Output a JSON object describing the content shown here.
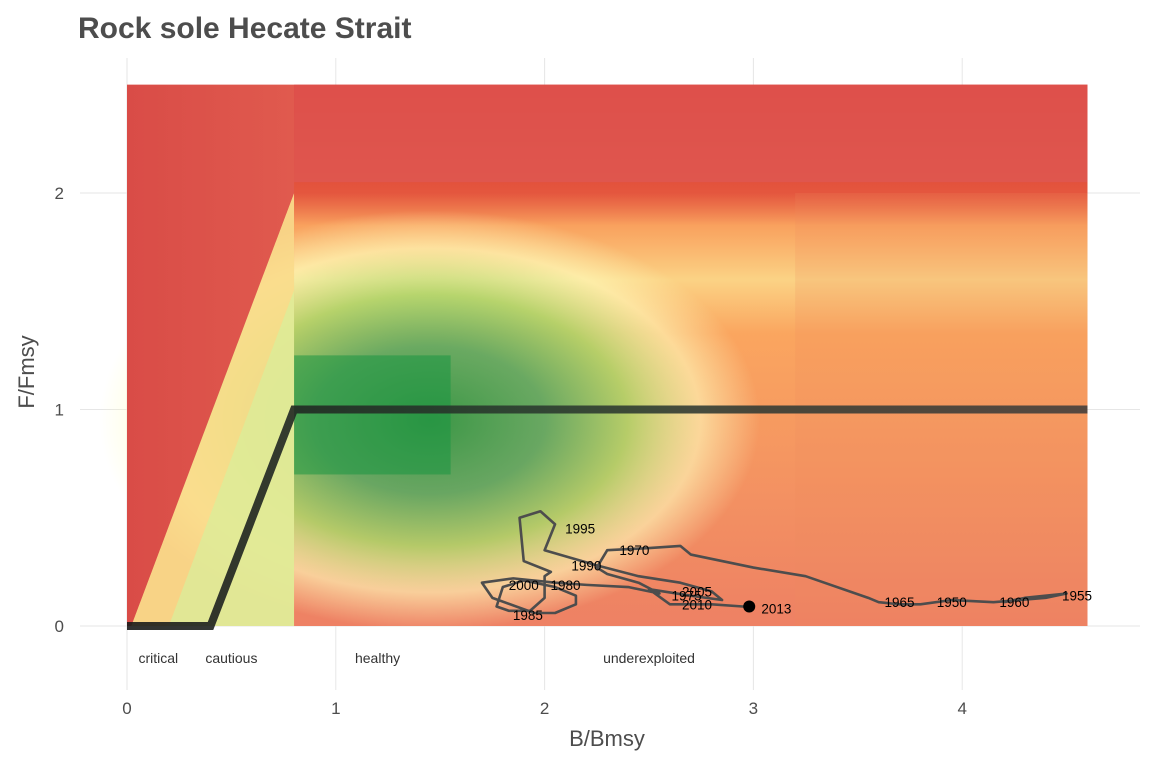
{
  "chart_data": {
    "type": "line",
    "title": "Rock sole Hecate Strait",
    "xlabel": "B/Bmsy",
    "ylabel": "F/Fmsy",
    "xlim": [
      -0.1,
      4.8
    ],
    "ylim": [
      -0.3,
      2.6
    ],
    "x_ticks": [
      0,
      1,
      2,
      3,
      4
    ],
    "y_ticks": [
      0,
      1,
      2
    ],
    "grid": true,
    "background": {
      "description": "Kobe-style colour field (red = overfished/overfishing, green = optimal near B/Bmsy 0.8–1.5, F/Fmsy ~1)",
      "x_range": [
        0,
        4.6
      ],
      "y_range": [
        0,
        2.5
      ],
      "colors": {
        "red": "#d7191c",
        "orange": "#fdae61",
        "yellow": "#ffffbf",
        "light_green": "#a6d96a",
        "green": "#1a9641"
      }
    },
    "harvest_control_rule": {
      "x": [
        0,
        0.4,
        0.8,
        4.6
      ],
      "y": [
        0,
        0,
        1,
        1
      ],
      "color": "#1a1a1a"
    },
    "zone_labels": [
      {
        "text": "critical",
        "x": 0.15
      },
      {
        "text": "cautious",
        "x": 0.5
      },
      {
        "text": "healthy",
        "x": 1.2
      },
      {
        "text": "underexploited",
        "x": 2.5
      }
    ],
    "series": [
      {
        "x": [
          4.2,
          4.3,
          4.5,
          4.4,
          4.15,
          3.95,
          3.8,
          3.7,
          3.6,
          3.55,
          3.25,
          3.0,
          2.7,
          2.65,
          2.5,
          2.3,
          2.25,
          2.3,
          2.45,
          2.55,
          2.4,
          2.2,
          2.05,
          1.85,
          1.7,
          1.75,
          1.95,
          2.05,
          2.15,
          2.15,
          2.05,
          1.9,
          1.8,
          1.77,
          1.83,
          1.93,
          2.0,
          2.0,
          2.03,
          1.9,
          1.88,
          1.98,
          2.05,
          2.0,
          2.25,
          2.45,
          2.65,
          2.8,
          2.85,
          2.7,
          2.5,
          2.6,
          2.8,
          2.95,
          3.0
        ],
        "y": [
          0.11,
          0.13,
          0.15,
          0.13,
          0.11,
          0.12,
          0.1,
          0.1,
          0.11,
          0.13,
          0.23,
          0.27,
          0.33,
          0.37,
          0.36,
          0.35,
          0.27,
          0.24,
          0.2,
          0.15,
          0.18,
          0.19,
          0.2,
          0.22,
          0.2,
          0.13,
          0.06,
          0.06,
          0.1,
          0.14,
          0.18,
          0.21,
          0.18,
          0.09,
          0.07,
          0.07,
          0.13,
          0.23,
          0.25,
          0.3,
          0.5,
          0.53,
          0.47,
          0.35,
          0.28,
          0.23,
          0.2,
          0.16,
          0.12,
          0.14,
          0.17,
          0.1,
          0.1,
          0.09,
          0.09
        ],
        "color": "#4d4d4d"
      }
    ],
    "current_point": {
      "x": 2.98,
      "y": 0.09,
      "label": "2013"
    },
    "year_labels": [
      {
        "text": "1950",
        "x": 3.95,
        "y": 0.11
      },
      {
        "text": "1955",
        "x": 4.55,
        "y": 0.14
      },
      {
        "text": "1960",
        "x": 4.25,
        "y": 0.11
      },
      {
        "text": "1965",
        "x": 3.7,
        "y": 0.11
      },
      {
        "text": "1970",
        "x": 2.43,
        "y": 0.35
      },
      {
        "text": "1975",
        "x": 2.68,
        "y": 0.14
      },
      {
        "text": "1980",
        "x": 2.1,
        "y": 0.19
      },
      {
        "text": "1985",
        "x": 1.92,
        "y": 0.05
      },
      {
        "text": "1990",
        "x": 2.2,
        "y": 0.28
      },
      {
        "text": "1995",
        "x": 2.17,
        "y": 0.45
      },
      {
        "text": "2000",
        "x": 1.9,
        "y": 0.19
      },
      {
        "text": "2005",
        "x": 2.73,
        "y": 0.16
      },
      {
        "text": "2010",
        "x": 2.73,
        "y": 0.1
      },
      {
        "text": "2013",
        "x": 3.11,
        "y": 0.08
      }
    ]
  }
}
